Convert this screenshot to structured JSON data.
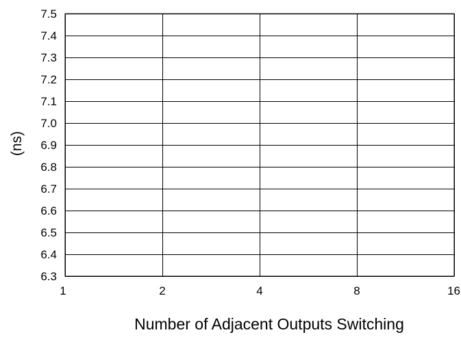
{
  "chart_data": {
    "type": "line",
    "title": "",
    "xlabel": "Number of Adjacent Outputs Switching",
    "ylabel": "(ns)",
    "x_scale": "log2",
    "x_ticks": [
      "1",
      "2",
      "4",
      "8",
      "16"
    ],
    "x_tick_values": [
      1,
      2,
      4,
      8,
      16
    ],
    "xlim": [
      1,
      16
    ],
    "y_ticks": [
      "6.3",
      "6.4",
      "6.5",
      "6.6",
      "6.7",
      "6.8",
      "6.9",
      "7.0",
      "7.1",
      "7.2",
      "7.3",
      "7.4",
      "7.5"
    ],
    "y_tick_values": [
      6.3,
      6.4,
      6.5,
      6.6,
      6.7,
      6.8,
      6.9,
      7.0,
      7.1,
      7.2,
      7.3,
      7.4,
      7.5
    ],
    "ylim": [
      6.3,
      7.5
    ],
    "grid": true,
    "series": []
  }
}
